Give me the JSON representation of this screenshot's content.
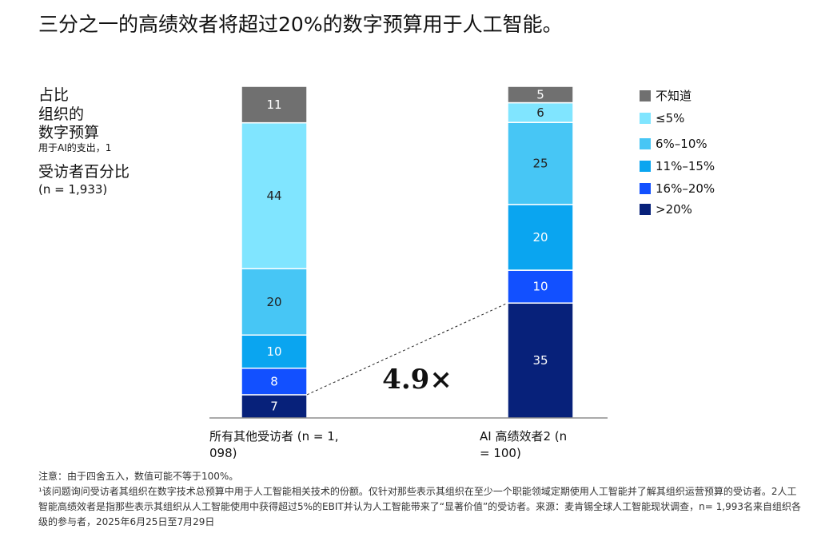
{
  "title": "三分之一的高绩效者将超过20%的数字预算用于人工智能。",
  "ylabel": {
    "line1": "占比",
    "line2": "组织的",
    "line3": "数字预算",
    "line4": "用于AI的支出，1",
    "line5": "受访者百分比",
    "line6": "(n = 1,933)"
  },
  "legend": [
    {
      "label": "不知道",
      "color": "#707070"
    },
    {
      "label": "≤5%",
      "color": "#80E5FF"
    },
    {
      "label": "6%–10%",
      "color": "#47C6F5"
    },
    {
      "label": "11%–15%",
      "color": "#0AA5F0"
    },
    {
      "label": "16%–20%",
      "color": "#1250FF"
    },
    {
      "label": ">20%",
      "color": "#07217A"
    }
  ],
  "chart_data": {
    "type": "bar",
    "stacked": true,
    "title": "三分之一的高绩效者将超过20%的数字预算用于人工智能。",
    "categories": [
      "所有其他受访者 (n = 1,098)",
      "AI 高绩效者2 (n = 100)"
    ],
    "series": [
      {
        "name": ">20%",
        "values": [
          7,
          35
        ]
      },
      {
        "name": "16%–20%",
        "values": [
          8,
          10
        ]
      },
      {
        "name": "11%–15%",
        "values": [
          10,
          20
        ]
      },
      {
        "name": "6%–10%",
        "values": [
          20,
          25
        ]
      },
      {
        "name": "≤5%",
        "values": [
          44,
          6
        ]
      },
      {
        "name": "不知道",
        "values": [
          11,
          5
        ]
      }
    ],
    "ylim": [
      0,
      100
    ],
    "annotation": "4.9×"
  },
  "categories_display": [
    {
      "line1": "所有其他受访者 (n = 1,",
      "line2": "098)"
    },
    {
      "line1": "AI 高绩效者2 (n",
      "line2": "= 100)"
    }
  ],
  "notes": {
    "note": "注意：由于四舍五入，数值可能不等于100%。",
    "footnote": "¹该问题询问受访者其组织在数字技术总预算中用于人工智能相关技术的份额。仅针对那些表示其组织在至少一个职能领域定期使用人工智能并了解其组织运营预算的受访者。2人工智能高绩效者是指那些表示其组织从人工智能使用中获得超过5%的EBIT并认为人工智能带来了“显著价值”的受访者。来源：麦肯锡全球人工智能现状调查，n= 1,993名来自组织各级的参与者，2025年6月25日至7月29日"
  }
}
